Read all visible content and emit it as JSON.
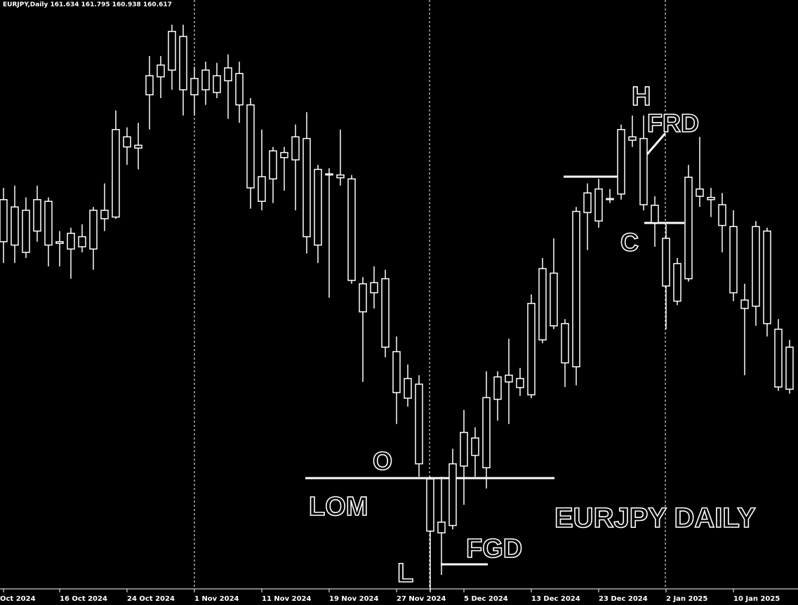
{
  "chart_data": {
    "type": "candlestick",
    "header": "EURJPY,Daily 161.634 161.795 160.938 160.617",
    "annotations": [
      "H",
      "FRD",
      "C",
      "O",
      "LOM",
      "L",
      "FGD",
      "EURJPY DAILY"
    ],
    "categories": [
      "Oct 2024",
      null,
      null,
      null,
      null,
      "16 Oct 2024",
      null,
      null,
      null,
      null,
      null,
      "24 Oct 2024",
      null,
      null,
      null,
      null,
      null,
      "1 Nov 2024",
      null,
      null,
      null,
      null,
      null,
      "11 Nov 2024",
      null,
      null,
      null,
      null,
      null,
      "19 Nov 2024",
      null,
      null,
      null,
      null,
      null,
      "27 Nov 2024",
      null,
      null,
      null,
      null,
      null,
      "5 Dec 2024",
      null,
      null,
      null,
      null,
      null,
      "13 Dec 2024",
      null,
      null,
      null,
      null,
      null,
      "23 Dec 2024",
      null,
      null,
      null,
      null,
      null,
      "2 Jan 2025",
      null,
      null,
      null,
      null,
      null,
      "10 Jan 2025",
      null,
      null,
      null,
      null,
      null
    ],
    "open": [
      163.64,
      163.51,
      163.45,
      163.08,
      163.61,
      162.89,
      163.04,
      162.98,
      162.76,
      163.3,
      163.33,
      164.76,
      164.56,
      165.51,
      165.83,
      165.95,
      166.55,
      165.8,
      165.6,
      165.85,
      165.76,
      165.89,
      165.33,
      164.05,
      164.01,
      164.48,
      164.35,
      164.73,
      164.18,
      164.1,
      164.08,
      164.01,
      162.14,
      161.98,
      162.23,
      160.93,
      160.45,
      160.35,
      158.66,
      157.7,
      157.83,
      158.89,
      159.39,
      158.86,
      160.08,
      160.39,
      160.45,
      160.16,
      161.14,
      162.33,
      161.43,
      160.66,
      163.41,
      163.83,
      163.66,
      163.74,
      164.7,
      164.73,
      163.54,
      162.95,
      162.5,
      162.23,
      163.7,
      163.68,
      163.55,
      163.16,
      161.85,
      161.74,
      161.43,
      161.33,
      161.01
    ],
    "high": [
      163.85,
      163.89,
      163.68,
      163.89,
      163.68,
      163.08,
      163.14,
      163.2,
      163.51,
      163.93,
      165.23,
      164.93,
      165.01,
      166.2,
      166.2,
      166.76,
      166.76,
      166.01,
      166.1,
      166.08,
      166.23,
      166.1,
      165.45,
      164.89,
      164.58,
      164.58,
      164.98,
      165.2,
      164.26,
      164.2,
      164.89,
      164.08,
      162.26,
      162.45,
      162.39,
      161.2,
      160.7,
      160.51,
      158.7,
      158.7,
      159.2,
      159.89,
      159.58,
      160.58,
      160.58,
      161.16,
      160.64,
      161.95,
      162.6,
      162.95,
      161.51,
      163.51,
      163.93,
      164.01,
      163.83,
      164.98,
      165.14,
      165.14,
      163.7,
      163.2,
      162.6,
      164.26,
      164.76,
      163.85,
      163.76,
      163.45,
      162.14,
      163.26,
      163.14,
      161.51,
      161.14
    ],
    "low": [
      162.51,
      162.51,
      162.6,
      162.89,
      162.45,
      162.45,
      162.23,
      162.7,
      162.39,
      163.08,
      163.3,
      164.26,
      164.18,
      164.89,
      165.45,
      165.6,
      165.14,
      165.14,
      165.33,
      165.45,
      165.08,
      165.01,
      163.48,
      163.45,
      163.58,
      163.8,
      163.45,
      162.68,
      162.51,
      161.89,
      163.89,
      162.14,
      160.39,
      161.7,
      160.83,
      159.64,
      159.95,
      158.7,
      156.64,
      156.95,
      157.76,
      158.2,
      158.7,
      158.49,
      159.7,
      159.64,
      160.14,
      160.1,
      161.08,
      161.33,
      160.3,
      160.33,
      162.74,
      163.14,
      163.58,
      163.64,
      164.58,
      163.45,
      162.8,
      161.33,
      161.76,
      162.18,
      163.51,
      163.33,
      162.7,
      161.83,
      160.51,
      161.39,
      161.2,
      160.23,
      160.18
    ],
    "close": [
      162.89,
      162.83,
      162.7,
      163.64,
      162.83,
      162.86,
      162.76,
      162.8,
      163.45,
      163.45,
      164.89,
      164.58,
      164.61,
      165.85,
      166.04,
      166.64,
      165.6,
      165.51,
      165.95,
      165.55,
      165.99,
      165.33,
      163.85,
      163.61,
      164.51,
      164.39,
      164.76,
      162.98,
      162.83,
      164.08,
      164.03,
      162.2,
      161.64,
      162.16,
      161.01,
      160.2,
      160.1,
      158.93,
      157.73,
      157.89,
      158.93,
      159.49,
      159.08,
      160.11,
      160.48,
      160.51,
      160.29,
      161.79,
      162.41,
      161.39,
      160.73,
      163.43,
      163.76,
      163.26,
      163.64,
      164.89,
      164.76,
      163.55,
      163.23,
      162.1,
      161.83,
      164.04,
      163.83,
      163.64,
      163.18,
      161.98,
      161.7,
      163.16,
      163.08,
      160.3,
      160.26
    ],
    "ylim": [
      156.45,
      167.2
    ],
    "color": "#ffffff"
  }
}
